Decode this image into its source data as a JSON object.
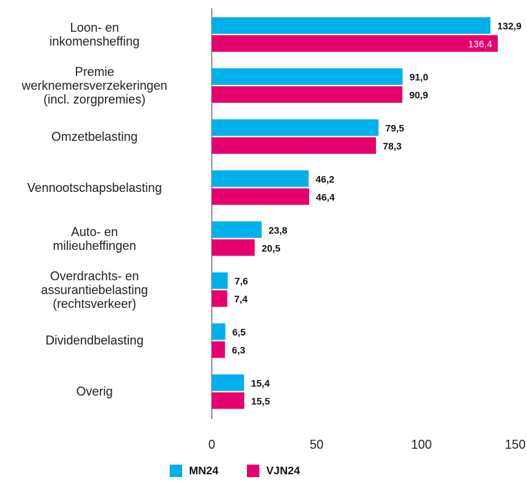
{
  "chart_data": {
    "type": "bar",
    "orientation": "horizontal",
    "categories": [
      "Loon- en\ninkomensheffing",
      "Premie\nwerknemersverzekeringen\n(incl. zorgpremies)",
      "Omzetbelasting",
      "Vennootschapsbelasting",
      "Auto- en\nmilieuheffingen",
      "Overdrachts- en\nassurantiebelasting\n(rechtsverkeer)",
      "Dividendbelasting",
      "Overig"
    ],
    "series": [
      {
        "name": "MN24",
        "color": "#00b0ea",
        "values": [
          132.9,
          91.0,
          79.5,
          46.2,
          23.8,
          7.6,
          6.5,
          15.4
        ],
        "value_labels": [
          "132,9",
          "91,0",
          "79,5",
          "46,2",
          "23,8",
          "7,6",
          "6,5",
          "15,4"
        ]
      },
      {
        "name": "VJN24",
        "color": "#e5006d",
        "values": [
          136.4,
          90.9,
          78.3,
          46.4,
          20.5,
          7.4,
          6.3,
          15.5
        ],
        "value_labels": [
          "136,4",
          "90,9",
          "78,3",
          "46,4",
          "20,5",
          "7,4",
          "6,3",
          "15,5"
        ]
      }
    ],
    "xlim": [
      0,
      150
    ],
    "xticks": [
      0,
      50,
      100,
      150
    ],
    "grid": false,
    "legend": "bottom"
  }
}
